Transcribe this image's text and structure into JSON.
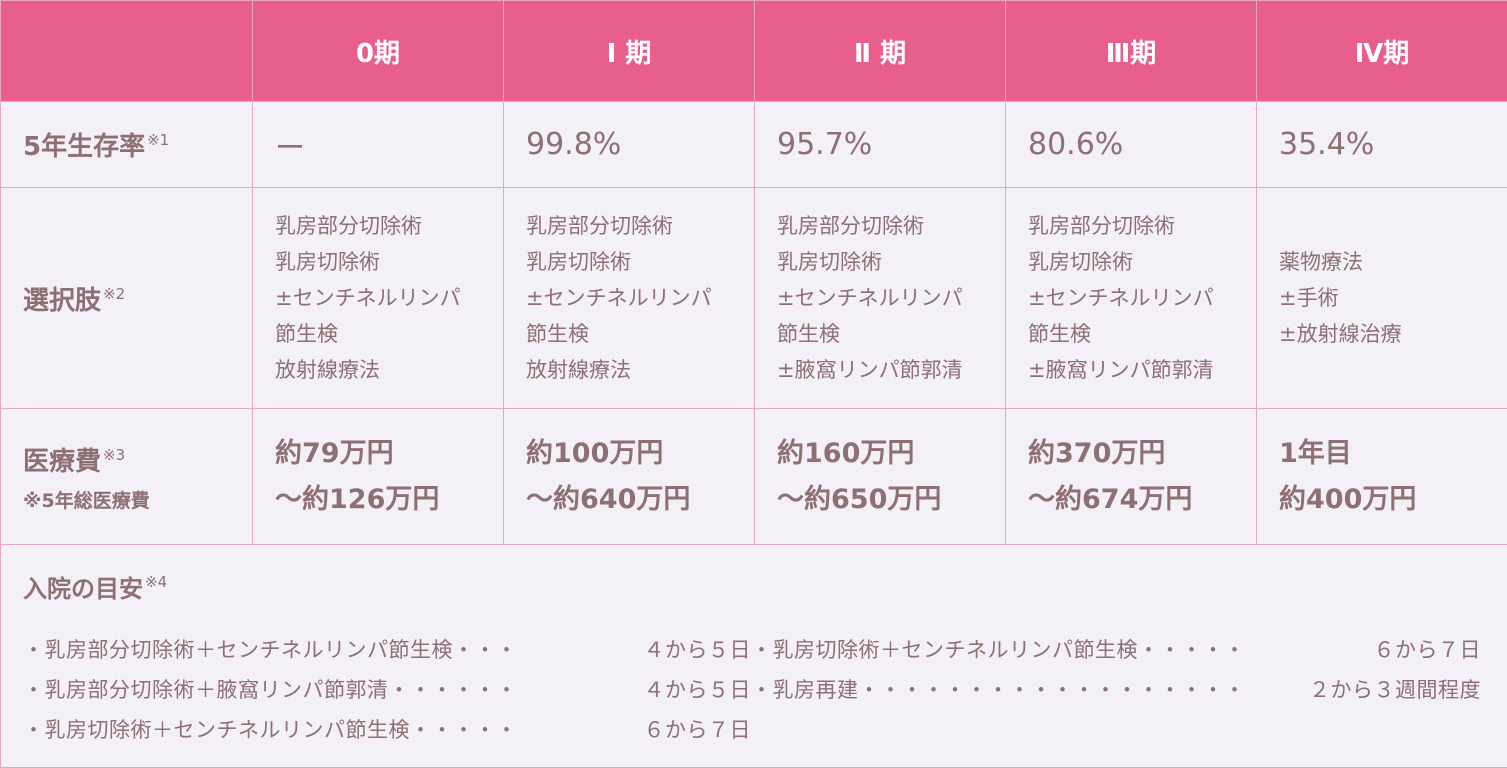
{
  "header": {
    "stages": [
      "0期",
      "Ⅰ 期",
      "Ⅱ 期",
      "Ⅲ期",
      "Ⅳ期"
    ]
  },
  "survival": {
    "label": "5年生存率",
    "note": "※1",
    "values": [
      "ー",
      "99.8%",
      "95.7%",
      "80.6%",
      "35.4%"
    ]
  },
  "options": {
    "label": "選択肢",
    "note": "※2",
    "stage0": [
      "乳房部分切除術",
      "乳房切除術",
      "±センチネルリンパ",
      "節生検",
      "放射線療法"
    ],
    "stage1": [
      "乳房部分切除術",
      "乳房切除術",
      "±センチネルリンパ",
      "節生検",
      "放射線療法"
    ],
    "stage2": [
      "乳房部分切除術",
      "乳房切除術",
      "±センチネルリンパ",
      "節生検",
      "±腋窩リンパ節郭清"
    ],
    "stage3": [
      "乳房部分切除術",
      "乳房切除術",
      "±センチネルリンパ",
      "節生検",
      "±腋窩リンパ節郭清"
    ],
    "stage4": [
      "薬物療法",
      "±手術",
      "±放射線治療"
    ]
  },
  "cost": {
    "label": "医療費",
    "note": "※3",
    "sublabel": "※5年総医療費",
    "stage0": [
      "約79万円",
      "〜約126万円"
    ],
    "stage1": [
      "約100万円",
      "〜約640万円"
    ],
    "stage2": [
      "約160万円",
      "〜約650万円"
    ],
    "stage3": [
      "約370万円",
      "〜約674万円"
    ],
    "stage4": [
      "1年目",
      "約400万円"
    ]
  },
  "hospital": {
    "label": "入院の目安",
    "note": "※4",
    "items": [
      {
        "name": "・乳房部分切除術＋センチネルリンパ節生検・・・",
        "days": "４から５日"
      },
      {
        "name": "・乳房切除術＋センチネルリンパ節生検・・・・・",
        "days": "６から７日"
      },
      {
        "name": "・乳房部分切除術＋腋窩リンパ節郭清・・・・・・",
        "days": "４から５日"
      },
      {
        "name": "・乳房再建・・・・・・・・・・・・・・・・・・",
        "days": "２から３週間程度"
      },
      {
        "name": "・乳房切除術＋センチネルリンパ節生検・・・・・",
        "days": "６から７日"
      }
    ]
  }
}
